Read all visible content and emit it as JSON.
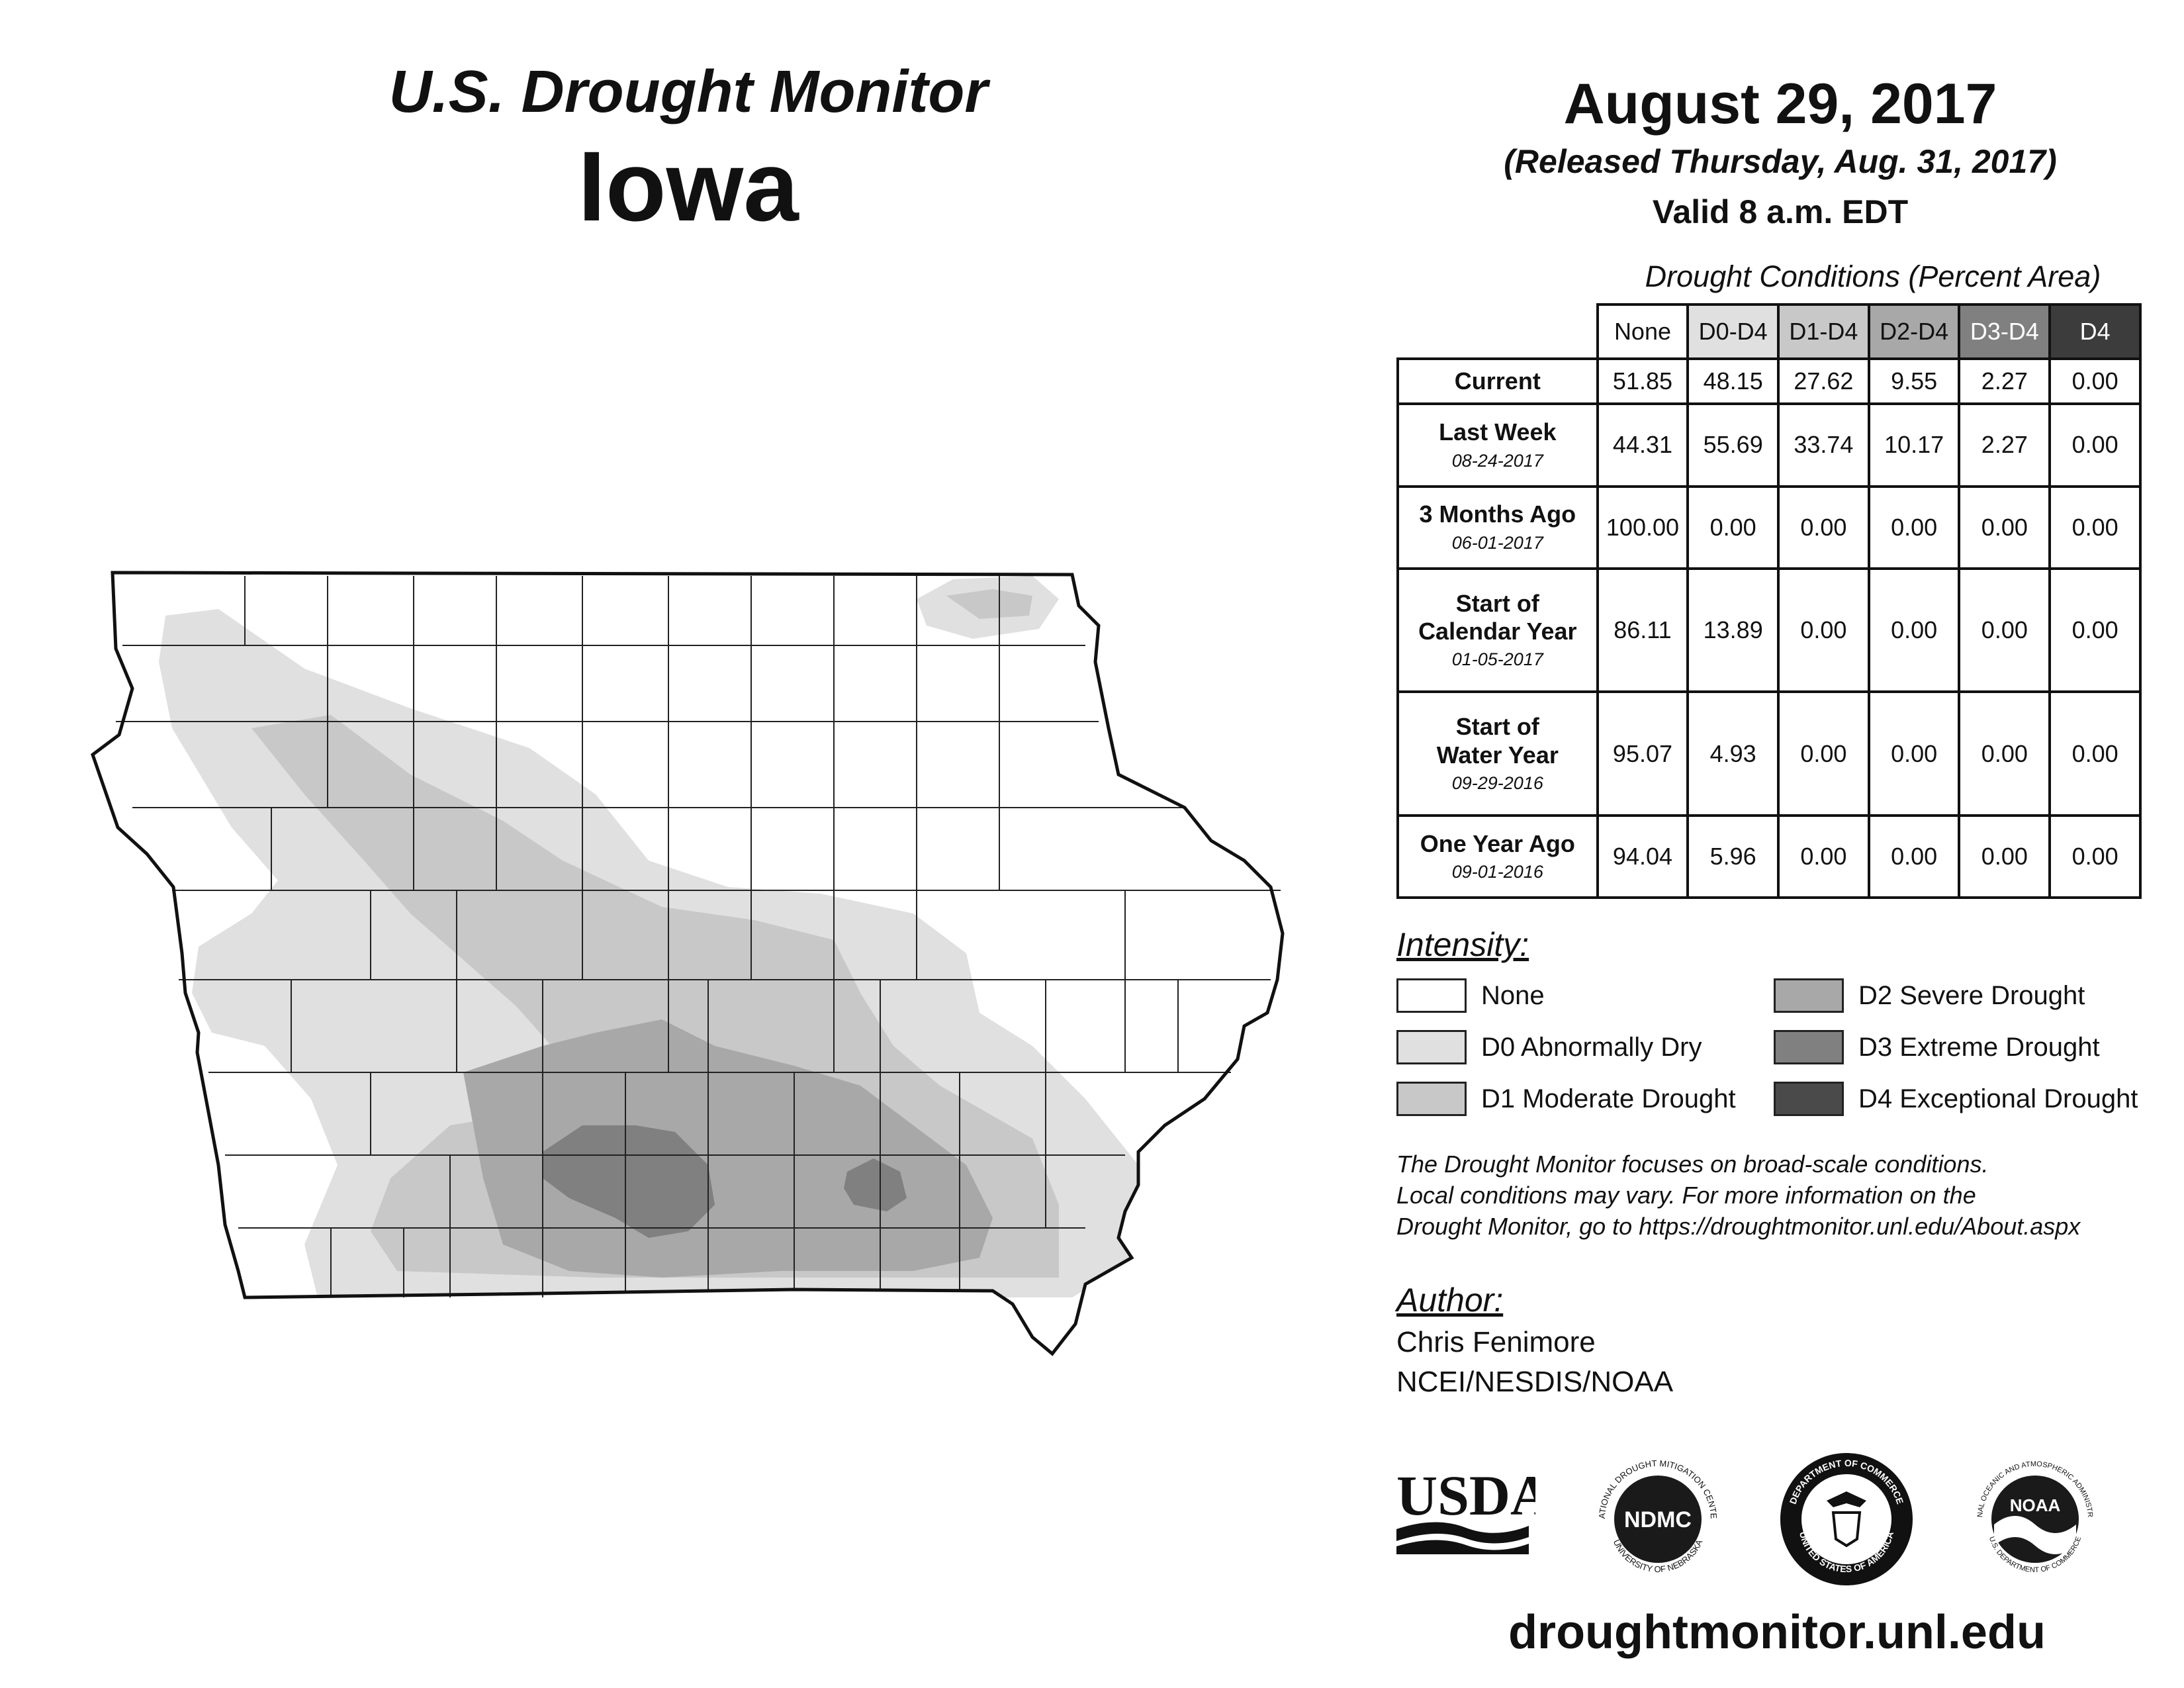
{
  "header": {
    "product": "U.S. Drought Monitor",
    "state": "Iowa",
    "date": "August 29, 2017",
    "released": "(Released Thursday, Aug. 31, 2017)",
    "valid": "Valid 8 a.m. EDT"
  },
  "table": {
    "caption": "Drought Conditions (Percent Area)",
    "columns": [
      {
        "label": "None",
        "bg": "#ffffff",
        "fg": "#111111"
      },
      {
        "label": "D0-D4",
        "bg": "#e0e0e0",
        "fg": "#111111"
      },
      {
        "label": "D1-D4",
        "bg": "#c8c8c8",
        "fg": "#111111"
      },
      {
        "label": "D2-D4",
        "bg": "#a8a8a8",
        "fg": "#111111"
      },
      {
        "label": "D3-D4",
        "bg": "#808080",
        "fg": "#ffffff"
      },
      {
        "label": "D4",
        "bg": "#3c3c3c",
        "fg": "#ffffff"
      }
    ],
    "rows": [
      {
        "label": "Current",
        "label2": "",
        "date": "",
        "values": [
          "51.85",
          "48.15",
          "27.62",
          "9.55",
          "2.27",
          "0.00"
        ]
      },
      {
        "label": "Last Week",
        "label2": "",
        "date": "08-24-2017",
        "values": [
          "44.31",
          "55.69",
          "33.74",
          "10.17",
          "2.27",
          "0.00"
        ]
      },
      {
        "label": "3 Months Ago",
        "label2": "",
        "date": "06-01-2017",
        "values": [
          "100.00",
          "0.00",
          "0.00",
          "0.00",
          "0.00",
          "0.00"
        ]
      },
      {
        "label": "Start of",
        "label2": "Calendar Year",
        "date": "01-05-2017",
        "values": [
          "86.11",
          "13.89",
          "0.00",
          "0.00",
          "0.00",
          "0.00"
        ]
      },
      {
        "label": "Start of",
        "label2": "Water Year",
        "date": "09-29-2016",
        "values": [
          "95.07",
          "4.93",
          "0.00",
          "0.00",
          "0.00",
          "0.00"
        ]
      },
      {
        "label": "One Year Ago",
        "label2": "",
        "date": "09-01-2016",
        "values": [
          "94.04",
          "5.96",
          "0.00",
          "0.00",
          "0.00",
          "0.00"
        ]
      }
    ]
  },
  "intensity": {
    "title": "Intensity:",
    "items": [
      {
        "label": "None",
        "color": "#ffffff"
      },
      {
        "label": "D0 Abnormally Dry",
        "color": "#e0e0e0"
      },
      {
        "label": "D1 Moderate Drought",
        "color": "#c8c8c8"
      },
      {
        "label": "D2 Severe Drought",
        "color": "#a8a8a8"
      },
      {
        "label": "D3 Extreme Drought",
        "color": "#808080"
      },
      {
        "label": "D4 Exceptional Drought",
        "color": "#4a4a4a"
      }
    ]
  },
  "note": {
    "line1": "The Drought Monitor focuses on broad-scale conditions.",
    "line2": "Local conditions may vary. For more information on the",
    "line3": "Drought Monitor, go to https://droughtmonitor.unl.edu/About.aspx"
  },
  "author": {
    "title": "Author:",
    "name": "Chris Fenimore",
    "org": "NCEI/NESDIS/NOAA"
  },
  "logos": {
    "usda": "USDA",
    "ndmc": "NDMC",
    "ndmc_top": "NATIONAL DROUGHT MITIGATION CENTER",
    "ndmc_bottom": "UNIVERSITY OF NEBRASKA",
    "doc_top": "DEPARTMENT OF COMMERCE",
    "doc_bottom": "UNITED STATES OF AMERICA",
    "noaa": "NOAA",
    "noaa_ring": "NATIONAL OCEANIC AND ATMOSPHERIC ADMINISTRATION",
    "noaa_bottom": "U.S. DEPARTMENT OF COMMERCE"
  },
  "footer": {
    "url": "droughtmonitor.unl.edu"
  }
}
